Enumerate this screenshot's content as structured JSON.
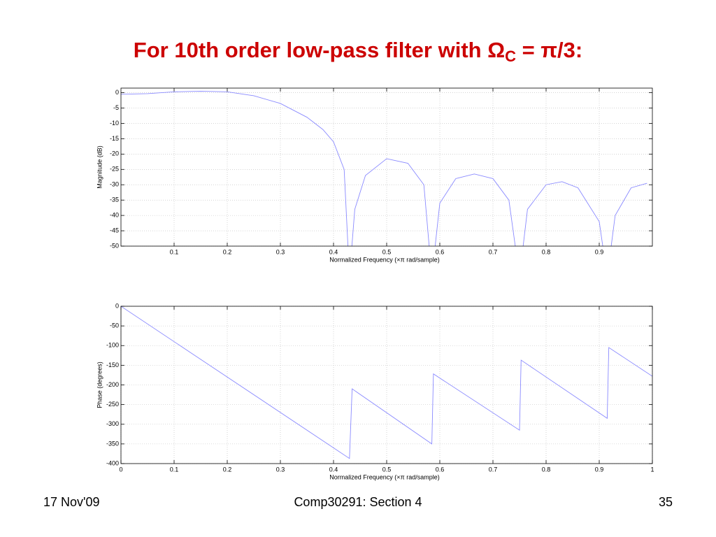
{
  "slide": {
    "title": [
      "For 10th order low-pass filter with Ω",
      "C",
      " = π/3:"
    ],
    "footer_left": "17 Nov'09",
    "footer_center": "Comp30291: Section 4",
    "footer_right": "35"
  },
  "chart_data": [
    {
      "type": "line",
      "x_label": "Normalized Frequency  (×π rad/sample)",
      "y_label": "Magnitude (dB)",
      "xlim": [
        0,
        1
      ],
      "ylim": [
        -50,
        1.5
      ],
      "xticks": [
        0.1,
        0.2,
        0.3,
        0.4,
        0.5,
        0.6,
        0.7,
        0.8,
        0.9
      ],
      "yticks": [
        0,
        -5,
        -10,
        -15,
        -20,
        -25,
        -30,
        -35,
        -40,
        -45,
        -50
      ],
      "grid": true,
      "series": [
        {
          "color": "#8a8aff",
          "x": [
            0,
            0.05,
            0.1,
            0.15,
            0.2,
            0.25,
            0.3,
            0.35,
            0.38,
            0.4,
            0.42,
            0.43,
            0.44,
            0.46,
            0.5,
            0.54,
            0.57,
            0.585,
            0.6,
            0.63,
            0.665,
            0.7,
            0.73,
            0.75,
            0.765,
            0.8,
            0.83,
            0.86,
            0.9,
            0.915,
            0.93,
            0.96,
            0.99
          ],
          "values": [
            -0.5,
            -0.3,
            0.3,
            0.5,
            0.3,
            -1,
            -3.5,
            -8,
            -12,
            -16,
            -25,
            -60,
            -38,
            -27,
            -21.5,
            -23,
            -30,
            -60,
            -36,
            -28,
            -26.5,
            -28,
            -35,
            -60,
            -38,
            -30,
            -29,
            -31,
            -42,
            -60,
            -40,
            -31,
            -29.5
          ]
        }
      ]
    },
    {
      "type": "line",
      "x_label": "Normalized Frequency  (×π rad/sample)",
      "y_label": "Phase (degrees)",
      "xlim": [
        0,
        1
      ],
      "ylim": [
        -400,
        0
      ],
      "xticks": [
        0,
        0.1,
        0.2,
        0.3,
        0.4,
        0.5,
        0.6,
        0.7,
        0.8,
        0.9,
        1
      ],
      "yticks": [
        0,
        -50,
        -100,
        -150,
        -200,
        -250,
        -300,
        -350,
        -400
      ],
      "grid": true,
      "series": [
        {
          "color": "#8a8aff",
          "x": [
            0,
            0.43,
            0.435,
            0.585,
            0.588,
            0.75,
            0.753,
            0.915,
            0.918,
            1
          ],
          "values": [
            0,
            -387,
            -210,
            -350,
            -172,
            -315,
            -137,
            -285,
            -105,
            -178
          ]
        }
      ]
    }
  ]
}
